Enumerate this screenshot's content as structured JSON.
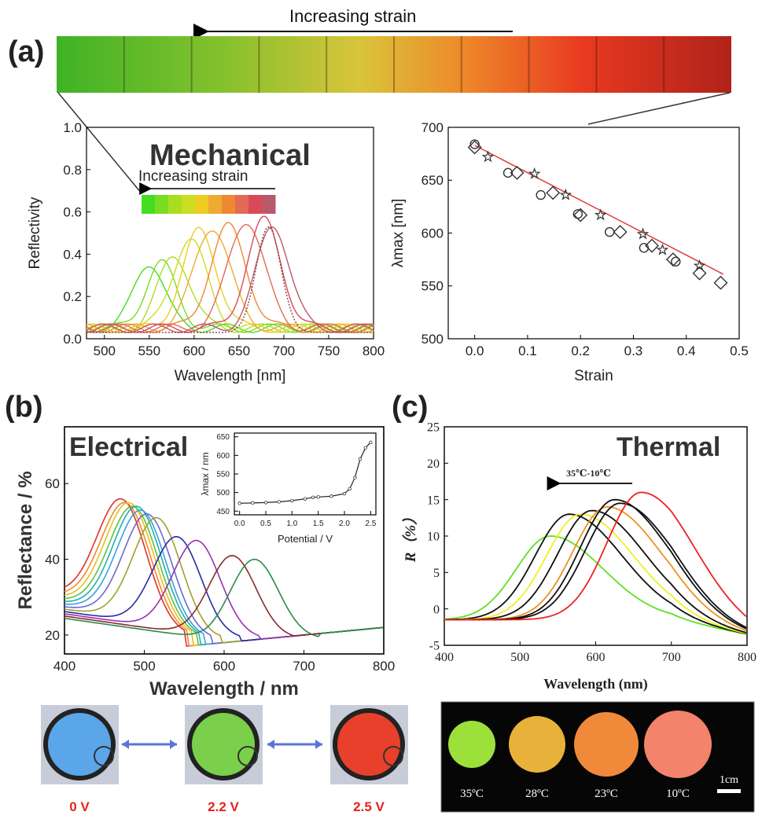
{
  "panel_labels": {
    "a": "(a)",
    "b": "(b)",
    "c": "(c)"
  },
  "strip": {
    "arrow_label": "Increasing strain"
  },
  "chart_data": [
    {
      "id": "a-left",
      "type": "line",
      "title": "Mechanical",
      "xlabel": "Wavelength [nm]",
      "ylabel": "Reflectivity",
      "xlim": [
        480,
        800
      ],
      "ylim": [
        0,
        1.0
      ],
      "xticks": [
        "500",
        "550",
        "600",
        "650",
        "700",
        "750",
        "800"
      ],
      "yticks": [
        "0.0",
        "0.2",
        "0.4",
        "0.6",
        "0.8",
        "1.0"
      ],
      "inset_label": "Increasing strain",
      "series_colors": [
        "#44dd22",
        "#77dd22",
        "#aadd22",
        "#ccdd22",
        "#eecc22",
        "#eeaa33",
        "#ee8833",
        "#e36a55",
        "#d84a5a",
        "#b85a6a"
      ],
      "series": [
        {
          "peak": 550,
          "height": 0.31,
          "width": 17
        },
        {
          "peak": 563,
          "height": 0.31,
          "width": 17
        },
        {
          "peak": 578,
          "height": 0.34,
          "width": 18
        },
        {
          "peak": 595,
          "height": 0.42,
          "width": 19
        },
        {
          "peak": 606,
          "height": 0.46,
          "width": 19
        },
        {
          "peak": 620,
          "height": 0.48,
          "width": 20
        },
        {
          "peak": 638,
          "height": 0.48,
          "width": 20
        },
        {
          "peak": 658,
          "height": 0.51,
          "width": 20
        },
        {
          "peak": 678,
          "height": 0.51,
          "width": 19
        },
        {
          "peak": 688,
          "height": 0.49,
          "width": 18
        }
      ]
    },
    {
      "id": "a-right",
      "type": "scatter",
      "xlabel": "Strain",
      "ylabel": "λmax [nm]",
      "xlim": [
        -0.05,
        0.5
      ],
      "ylim": [
        500,
        700
      ],
      "xticks": [
        "0.0",
        "0.1",
        "0.2",
        "0.3",
        "0.4",
        "0.5"
      ],
      "yticks": [
        "500",
        "550",
        "600",
        "650",
        "700"
      ],
      "fit": {
        "x": [
          0.0,
          0.47
        ],
        "y": [
          683,
          561
        ]
      },
      "series": [
        {
          "marker": "circle",
          "x": [
            0.0,
            0.063,
            0.125,
            0.195,
            0.255,
            0.32,
            0.38
          ],
          "y": [
            684,
            657,
            636,
            618,
            601,
            586,
            573
          ]
        },
        {
          "marker": "diamond",
          "x": [
            0.0,
            0.08,
            0.148,
            0.2,
            0.275,
            0.335,
            0.375,
            0.425,
            0.465
          ],
          "y": [
            681,
            657,
            638,
            617,
            601,
            588,
            575,
            562,
            553
          ]
        },
        {
          "marker": "star",
          "x": [
            0.025,
            0.113,
            0.172,
            0.238,
            0.318,
            0.355,
            0.425
          ],
          "y": [
            672,
            656,
            636,
            617,
            599,
            584,
            569
          ]
        }
      ]
    },
    {
      "id": "b",
      "type": "line",
      "title": "Electrical",
      "xlabel": "Wavelength / nm",
      "ylabel": "Reflectance / %",
      "xlim": [
        400,
        800
      ],
      "ylim": [
        15,
        75
      ],
      "xticks": [
        "400",
        "500",
        "600",
        "700",
        "800"
      ],
      "yticks": [
        "20",
        "40",
        "60"
      ],
      "series_colors": [
        "#e0302a",
        "#f08a2a",
        "#e8c020",
        "#60c040",
        "#20b0b0",
        "#3aa0e0",
        "#6a6ad0",
        "#a0a030",
        "#2a2aa0",
        "#9a30b0",
        "#8a2a2a",
        "#2a8a4a"
      ],
      "series": [
        {
          "peak": 470,
          "height": 56
        },
        {
          "peak": 475,
          "height": 55
        },
        {
          "peak": 480,
          "height": 55
        },
        {
          "peak": 485,
          "height": 54
        },
        {
          "peak": 490,
          "height": 54
        },
        {
          "peak": 495,
          "height": 53
        },
        {
          "peak": 503,
          "height": 52
        },
        {
          "peak": 515,
          "height": 51
        },
        {
          "peak": 540,
          "height": 46
        },
        {
          "peak": 565,
          "height": 45
        },
        {
          "peak": 610,
          "height": 41
        },
        {
          "peak": 638,
          "height": 40
        }
      ],
      "inset": {
        "xlabel": "Potential /  V",
        "ylabel": "λmax / nm",
        "xlim": [
          -0.1,
          2.6
        ],
        "ylim": [
          440,
          660
        ],
        "xticks": [
          "0.0",
          "0.5",
          "1.0",
          "1.5",
          "2.0",
          "2.5"
        ],
        "yticks": [
          "450",
          "500",
          "550",
          "600",
          "650"
        ],
        "x": [
          0.0,
          0.25,
          0.5,
          0.75,
          1.0,
          1.25,
          1.4,
          1.5,
          1.75,
          2.0,
          2.1,
          2.2,
          2.3,
          2.4,
          2.5
        ],
        "y": [
          471,
          472,
          473,
          475,
          478,
          483,
          487,
          488,
          490,
          497,
          510,
          540,
          590,
          620,
          635
        ]
      }
    },
    {
      "id": "c",
      "type": "line",
      "title": "Thermal",
      "xlabel": "Wavelength (nm)",
      "ylabel": "R（%）",
      "xlim": [
        400,
        800
      ],
      "ylim": [
        -5,
        25
      ],
      "xticks": [
        "400",
        "500",
        "600",
        "700",
        "800"
      ],
      "yticks": [
        "-5",
        "0",
        "5",
        "10",
        "15",
        "20",
        "25"
      ],
      "arrow_label": "35℃-10℃",
      "series_colors": [
        "#60e020",
        "#101010",
        "#f0f020",
        "#101010",
        "#f09020",
        "#101010",
        "#101010",
        "#ee2222"
      ],
      "series": [
        {
          "peak": 540,
          "height": 10
        },
        {
          "peak": 565,
          "height": 13
        },
        {
          "peak": 580,
          "height": 13
        },
        {
          "peak": 595,
          "height": 13.5
        },
        {
          "peak": 615,
          "height": 14
        },
        {
          "peak": 625,
          "height": 15
        },
        {
          "peak": 632,
          "height": 14.5
        },
        {
          "peak": 660,
          "height": 16
        }
      ]
    }
  ],
  "photos_b": {
    "labels": [
      "0 V",
      "2.2 V",
      "2.5 V"
    ],
    "colors": [
      "#5aa6e8",
      "#7ad04a",
      "#e8402a"
    ]
  },
  "photos_c": {
    "labels": [
      "35ºC",
      "28ºC",
      "23ºC",
      "10ºC"
    ],
    "colors": [
      "#9ce03a",
      "#e8b23a",
      "#f08a3a",
      "#f3836a"
    ],
    "scale_label": "1cm"
  }
}
